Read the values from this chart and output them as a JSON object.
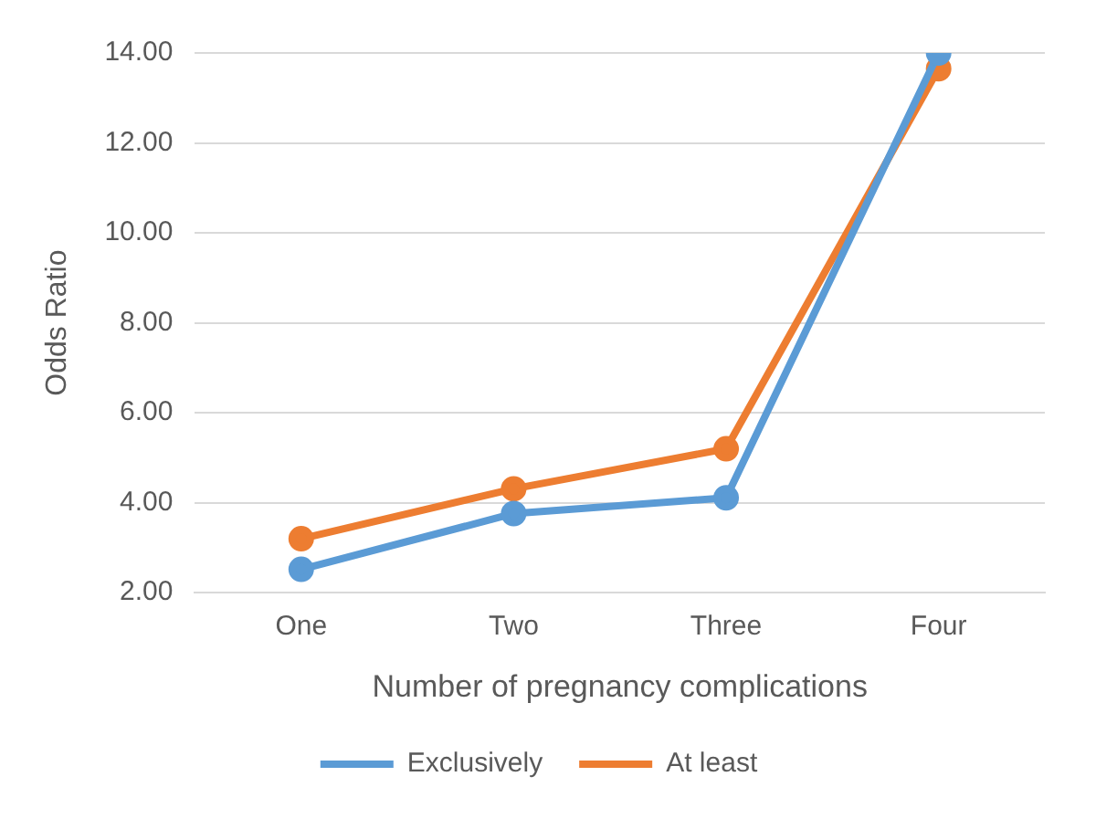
{
  "chart_data": {
    "type": "line",
    "xlabel": "Number of pregnancy complications",
    "ylabel": "Odds Ratio",
    "categories": [
      "One",
      "Two",
      "Three",
      "Four"
    ],
    "series": [
      {
        "name": "Exclusively",
        "color": "#5b9bd5",
        "values": [
          2.52,
          3.76,
          4.11,
          14
        ]
      },
      {
        "name": "At least",
        "color": "#ed7d31",
        "values": [
          3.2,
          4.31,
          5.2,
          13.65
        ]
      }
    ],
    "ylim": [
      2,
      14
    ],
    "yticks": [
      {
        "value": 2,
        "label": "2.00"
      },
      {
        "value": 4,
        "label": "4.00"
      },
      {
        "value": 6,
        "label": "6.00"
      },
      {
        "value": 8,
        "label": "8.00"
      },
      {
        "value": 10,
        "label": "10.00"
      },
      {
        "value": 12,
        "label": "12.00"
      },
      {
        "value": 14,
        "label": "14.00"
      }
    ],
    "grid": "y",
    "legend": "bottom",
    "marker": "circle",
    "line_style": "solid"
  }
}
